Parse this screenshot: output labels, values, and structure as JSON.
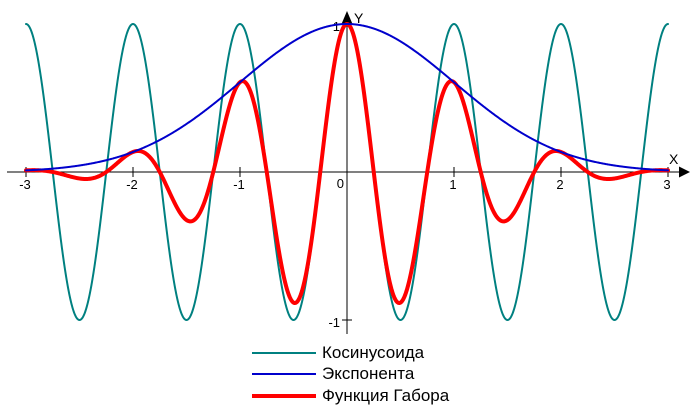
{
  "page": {
    "background_color": "#ffffff"
  },
  "chart_data": {
    "type": "line",
    "title": "",
    "x_axis_label": "X",
    "y_axis_label": "Y",
    "x_range": [
      -3,
      3
    ],
    "y_range": [
      -1,
      1
    ],
    "x_ticks": [
      -3,
      -2,
      -1,
      0,
      1,
      2,
      3
    ],
    "x_tick_labels": [
      "-3",
      "-2",
      "-1",
      "0",
      "1",
      "2",
      "3"
    ],
    "y_ticks": [
      1,
      -1
    ],
    "y_tick_labels": [
      "1",
      "-1"
    ],
    "grid": false,
    "axis_color": "#000000",
    "legend_position": "bottom-center",
    "sample_step": 0.005,
    "draw_order": [
      0,
      2,
      1
    ],
    "series": [
      {
        "name": "Косинусоида",
        "type": "cosine",
        "expression": "cos(2*pi*x)",
        "frequency": 1,
        "sigma": 1,
        "amplitude": 1,
        "color": "#008080",
        "stroke_width": 2
      },
      {
        "name": "Экспонента",
        "type": "gaussian",
        "expression": "exp(-x^2/2)",
        "frequency": 1,
        "sigma": 1,
        "amplitude": 1,
        "color": "#0000CC",
        "stroke_width": 2
      },
      {
        "name": "Функция Габора",
        "type": "gabor",
        "expression": "exp(-x^2/2)*cos(2*pi*x)",
        "frequency": 1,
        "sigma": 1,
        "amplitude": 1,
        "color": "#FF0000",
        "stroke_width": 4
      }
    ]
  }
}
